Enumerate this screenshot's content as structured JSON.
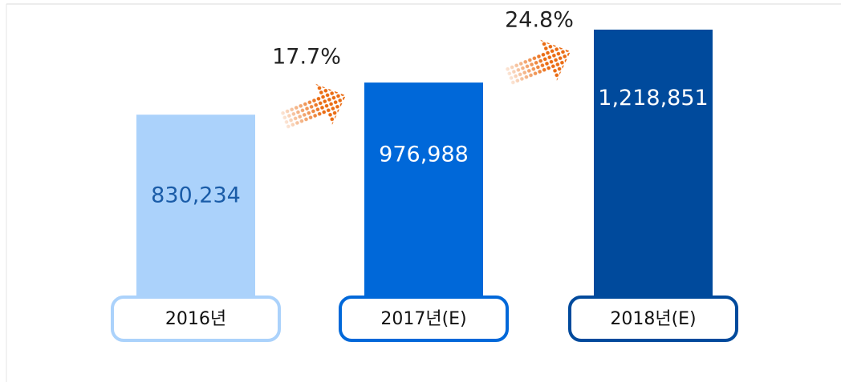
{
  "chart_data": {
    "type": "bar",
    "categories": [
      "2016년",
      "2017년(E)",
      "2018년(E)"
    ],
    "values": [
      830234,
      976988,
      1218851
    ],
    "value_labels": [
      "830,234",
      "976,988",
      "1,218,851"
    ],
    "colors": [
      "#abd2fb",
      "#0068d9",
      "#004a9c"
    ],
    "label_colors": [
      "#1a5ca8",
      "#ffffff",
      "#ffffff"
    ],
    "annotations": [
      "17.7%",
      "24.8%"
    ]
  }
}
